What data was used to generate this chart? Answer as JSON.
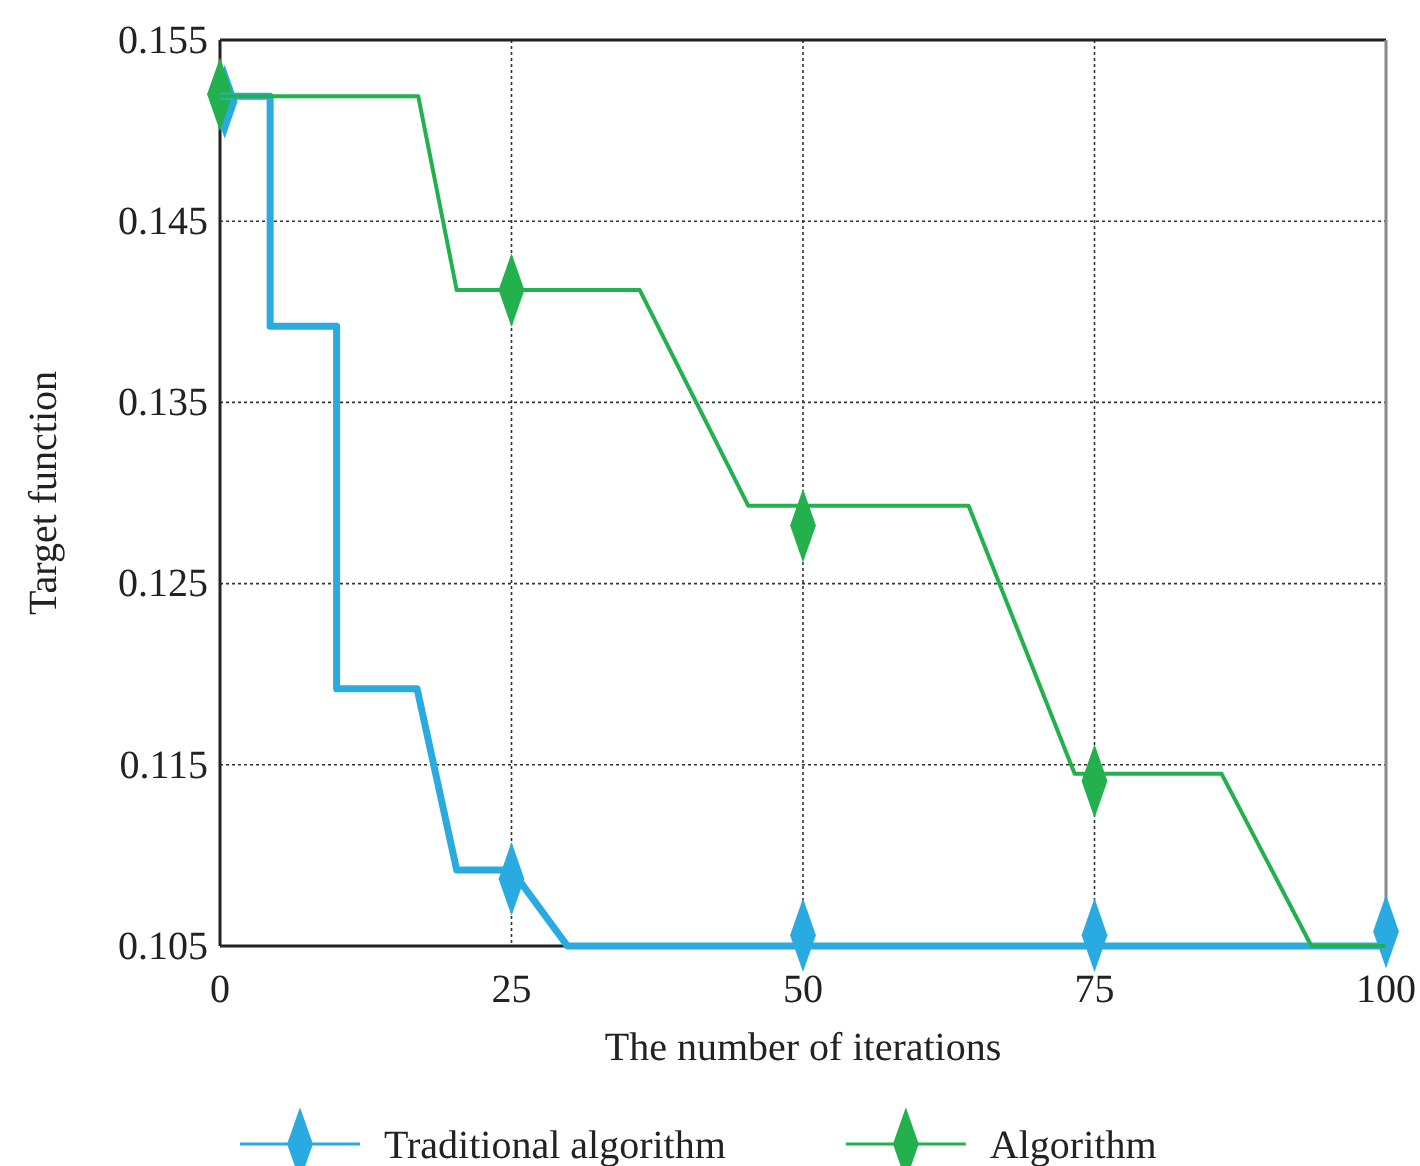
{
  "chart_data": {
    "type": "line",
    "xlabel": "The number of iterations",
    "ylabel": "Target function",
    "xlim": [
      0,
      100
    ],
    "xticks": [
      0,
      25,
      50,
      75,
      100
    ],
    "ylim": [
      0.105,
      0.155
    ],
    "yticks": [
      0.105,
      0.115,
      0.125,
      0.135,
      0.145,
      0.155
    ],
    "grid": true,
    "legend": "bottom",
    "marker": "diamond",
    "line_style": "solid",
    "series": [
      {
        "type": "line",
        "name": "Traditional algorithm",
        "color": "#29abe2",
        "marker": "none",
        "x": [
          0,
          4.3,
          4.3,
          10,
          10,
          16.9,
          20.3,
          25,
          29.8,
          100
        ],
        "values": [
          0.1519,
          0.1519,
          0.1392,
          0.1392,
          0.1192,
          0.1192,
          0.1092,
          0.1092,
          0.105,
          0.105
        ]
      },
      {
        "type": "line",
        "name": "Algorithm",
        "color": "#22b14c",
        "marker": "none",
        "x": [
          0,
          17,
          20.3,
          36,
          45.3,
          64.2,
          73.3,
          85.9,
          93.6,
          100
        ],
        "values": [
          0.1519,
          0.1519,
          0.1412,
          0.1412,
          0.1293,
          0.1293,
          0.1145,
          0.1145,
          0.105,
          0.105
        ]
      },
      {
        "type": "scatter",
        "color": "#29abe2",
        "x": [
          0.4,
          25,
          50,
          75,
          100
        ],
        "values": [
          0.1516,
          0.1087,
          0.1056,
          0.1056,
          0.1058
        ]
      },
      {
        "type": "scatter",
        "color": "#22b14c",
        "x": [
          0,
          25,
          50,
          75
        ],
        "values": [
          0.152,
          0.1412,
          0.1282,
          0.1141
        ]
      }
    ]
  }
}
